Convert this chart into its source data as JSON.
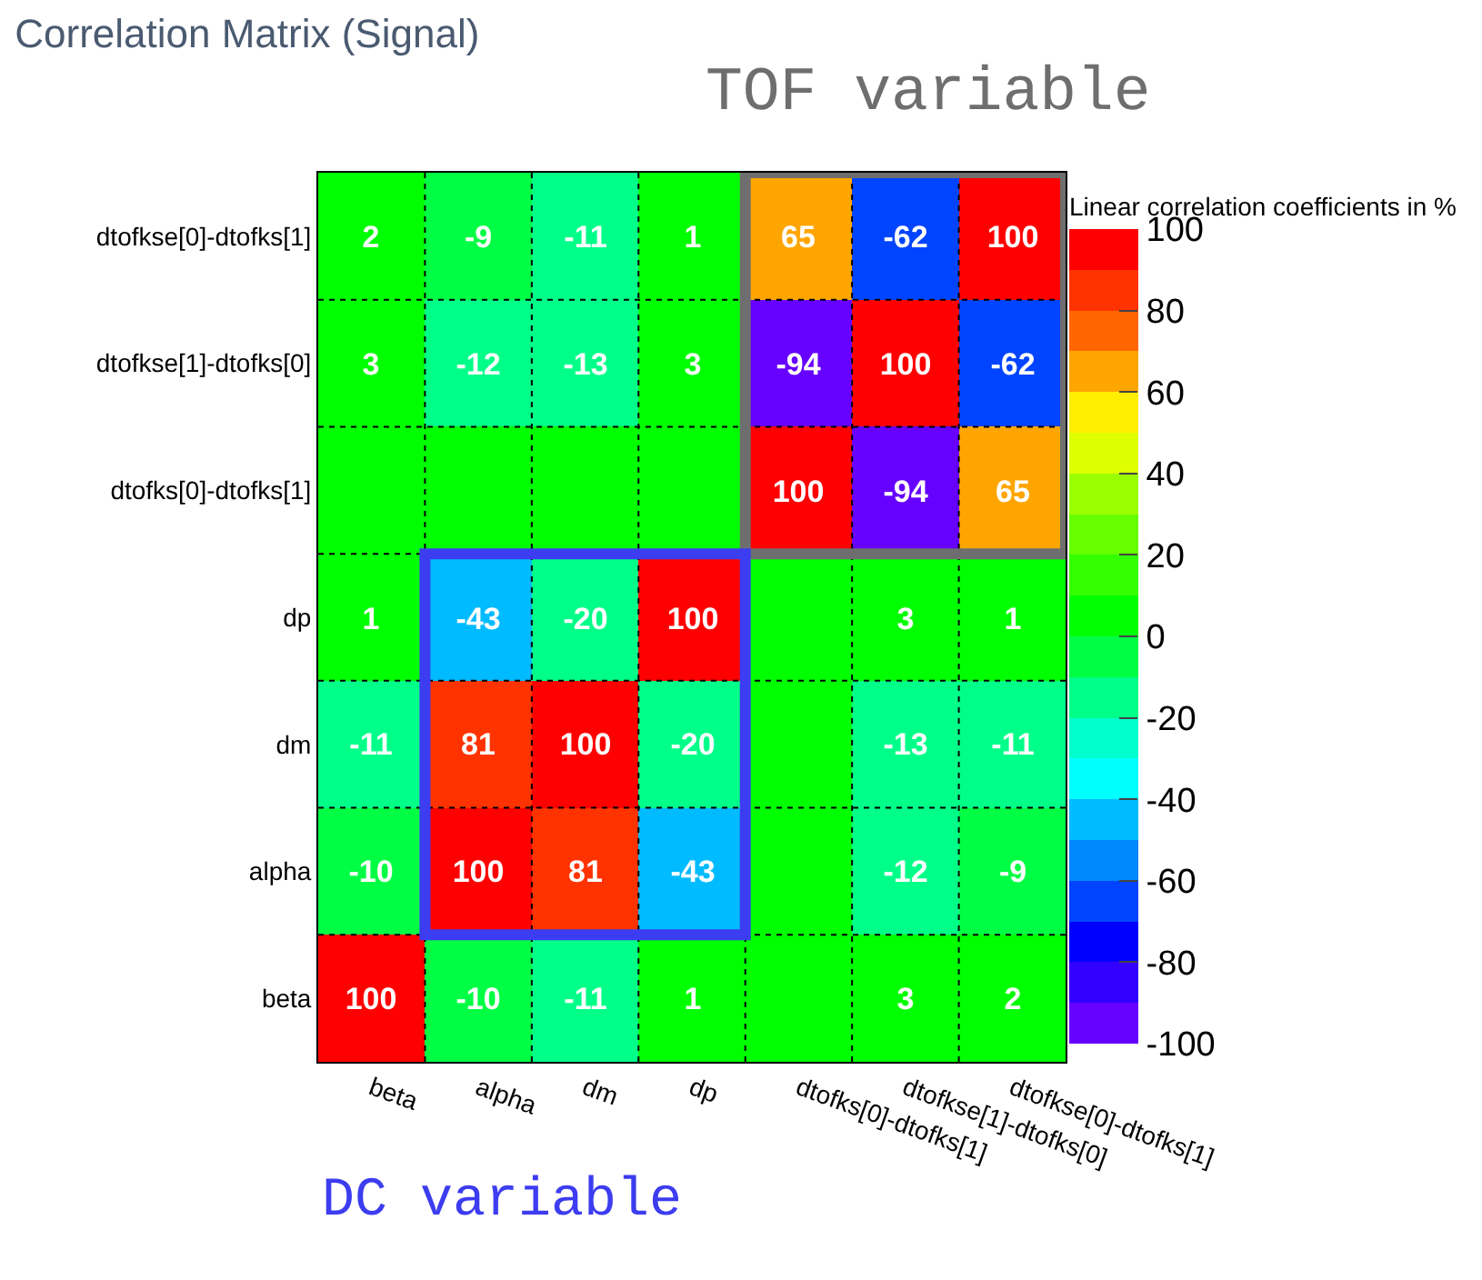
{
  "chart_data": {
    "type": "heatmap",
    "title": "Correlation Matrix (Signal)",
    "categories": [
      "beta",
      "alpha",
      "dm",
      "dp",
      "dtofks[0]-dtofks[1]",
      "dtofkse[1]-dtofks[0]",
      "dtofkse[0]-dtofks[1]"
    ],
    "y_categories": [
      "dtofkse[0]-dtofks[1]",
      "dtofkse[1]-dtofks[0]",
      "dtofks[0]-dtofks[1]",
      "dp",
      "dm",
      "alpha",
      "beta"
    ],
    "cells": [
      [
        2,
        -9,
        -11,
        1,
        65,
        -62,
        100
      ],
      [
        3,
        -12,
        -13,
        3,
        -94,
        100,
        -62
      ],
      [
        0,
        0,
        0,
        0,
        100,
        -94,
        65
      ],
      [
        1,
        -43,
        -20,
        100,
        0,
        3,
        1
      ],
      [
        -11,
        81,
        100,
        -20,
        0,
        -13,
        -11
      ],
      [
        -10,
        100,
        81,
        -43,
        0,
        -12,
        -9
      ],
      [
        100,
        -10,
        -11,
        1,
        0,
        3,
        2
      ]
    ],
    "cell_labels": [
      [
        "2",
        "-9",
        "-11",
        "1",
        "65",
        "-62",
        "100"
      ],
      [
        "3",
        "-12",
        "-13",
        "3",
        "-94",
        "100",
        "-62"
      ],
      [
        null,
        null,
        null,
        null,
        "100",
        "-94",
        "65"
      ],
      [
        "1",
        "-43",
        "-20",
        "100",
        null,
        "3",
        "1"
      ],
      [
        "-11",
        "81",
        "100",
        "-20",
        null,
        "-13",
        "-11"
      ],
      [
        "-10",
        "100",
        "81",
        "-43",
        null,
        "-12",
        "-9"
      ],
      [
        "100",
        "-10",
        "-11",
        "1",
        null,
        "3",
        "2"
      ]
    ],
    "clabel": "Linear correlation coefficients in %",
    "clim": [
      -100,
      100
    ],
    "cticks": [
      -100,
      -80,
      -60,
      -40,
      -20,
      0,
      20,
      40,
      60,
      80,
      100
    ],
    "grid": true,
    "annotations": [
      "TOF variable",
      "DC variable"
    ]
  }
}
